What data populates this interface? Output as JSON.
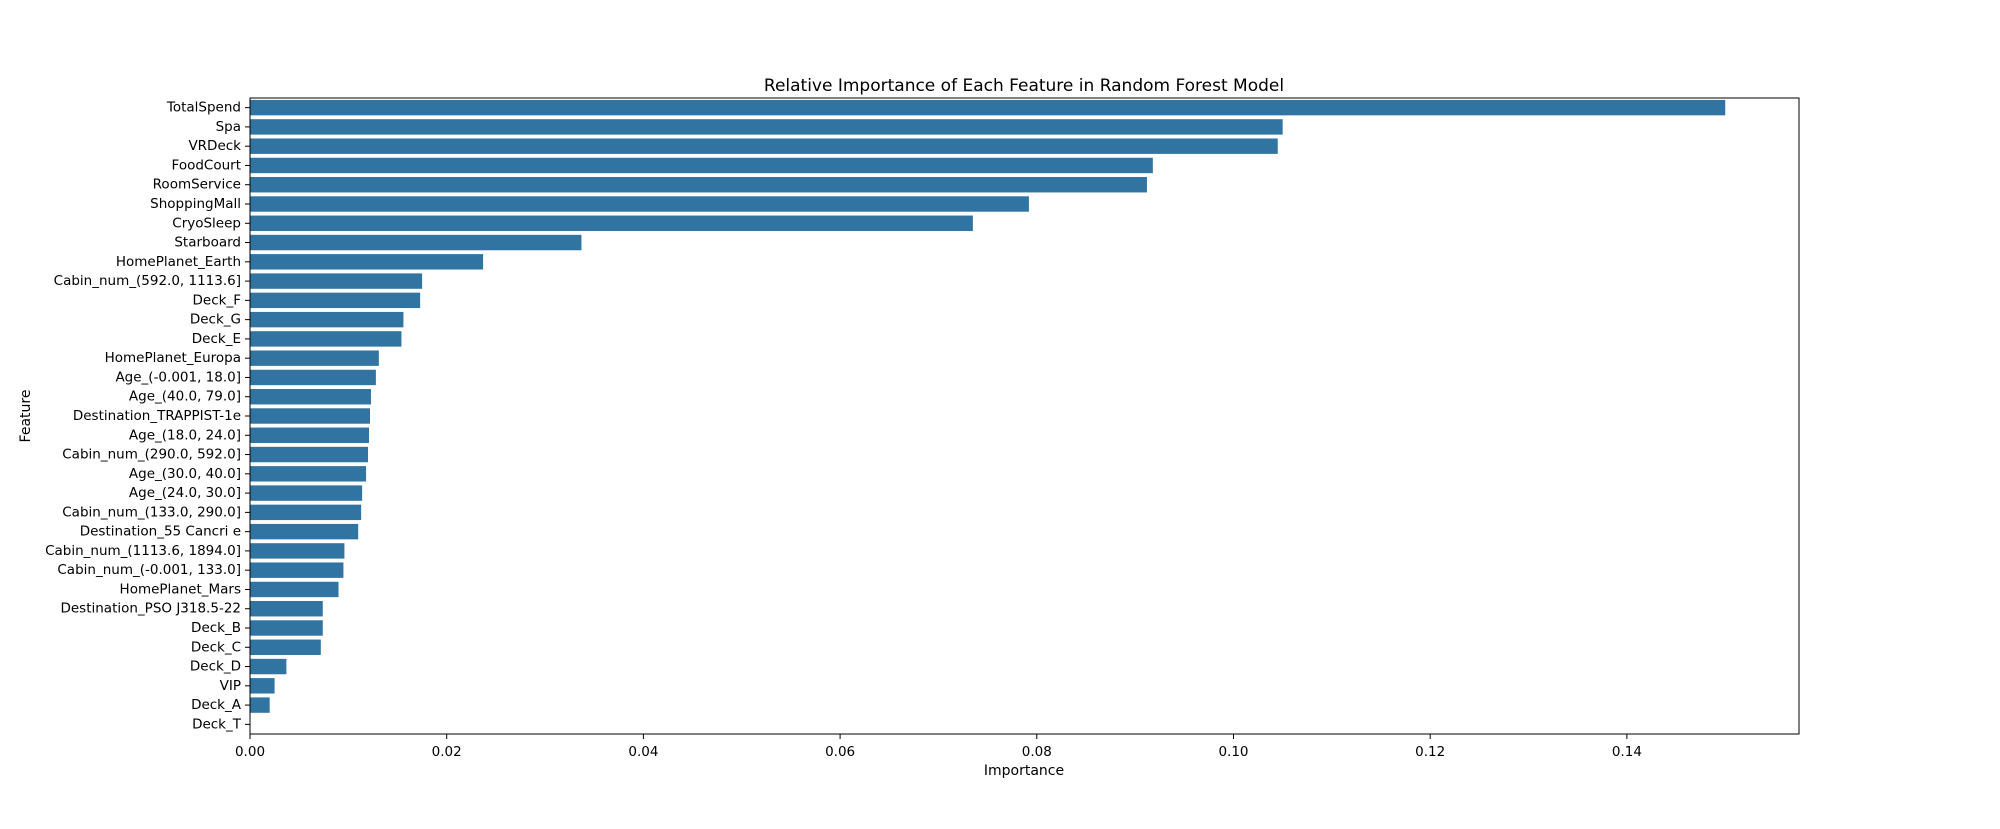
{
  "chart_data": {
    "type": "bar",
    "orientation": "horizontal",
    "title": "Relative Importance of Each Feature in Random Forest Model",
    "xlabel": "Importance",
    "ylabel": "Feature",
    "xlim": [
      0,
      0.1575
    ],
    "xticks": [
      0.0,
      0.02,
      0.04,
      0.06,
      0.08,
      0.1,
      0.12,
      0.14
    ],
    "xtick_labels": [
      "0.00",
      "0.02",
      "0.04",
      "0.06",
      "0.08",
      "0.10",
      "0.12",
      "0.14"
    ],
    "grid": false,
    "legend": "none",
    "bar_color": "#3274a1",
    "categories": [
      "TotalSpend",
      "Spa",
      "VRDeck",
      "FoodCourt",
      "RoomService",
      "ShoppingMall",
      "CryoSleep",
      "Starboard",
      "HomePlanet_Earth",
      "Cabin_num_(592.0, 1113.6]",
      "Deck_F",
      "Deck_G",
      "Deck_E",
      "HomePlanet_Europa",
      "Age_(-0.001, 18.0]",
      "Age_(40.0, 79.0]",
      "Destination_TRAPPIST-1e",
      "Age_(18.0, 24.0]",
      "Cabin_num_(290.0, 592.0]",
      "Age_(30.0, 40.0]",
      "Age_(24.0, 30.0]",
      "Cabin_num_(133.0, 290.0]",
      "Destination_55 Cancri e",
      "Cabin_num_(1113.6, 1894.0]",
      "Cabin_num_(-0.001, 133.0]",
      "HomePlanet_Mars",
      "Destination_PSO J318.5-22",
      "Deck_B",
      "Deck_C",
      "Deck_D",
      "VIP",
      "Deck_A",
      "Deck_T"
    ],
    "values": [
      0.15,
      0.105,
      0.1045,
      0.0918,
      0.0912,
      0.0792,
      0.0735,
      0.0337,
      0.0237,
      0.0175,
      0.0173,
      0.0156,
      0.0154,
      0.0131,
      0.0128,
      0.0123,
      0.0122,
      0.0121,
      0.012,
      0.0118,
      0.0114,
      0.0113,
      0.011,
      0.0096,
      0.0095,
      0.009,
      0.0074,
      0.0074,
      0.0072,
      0.0037,
      0.0025,
      0.002,
      0.0
    ]
  }
}
